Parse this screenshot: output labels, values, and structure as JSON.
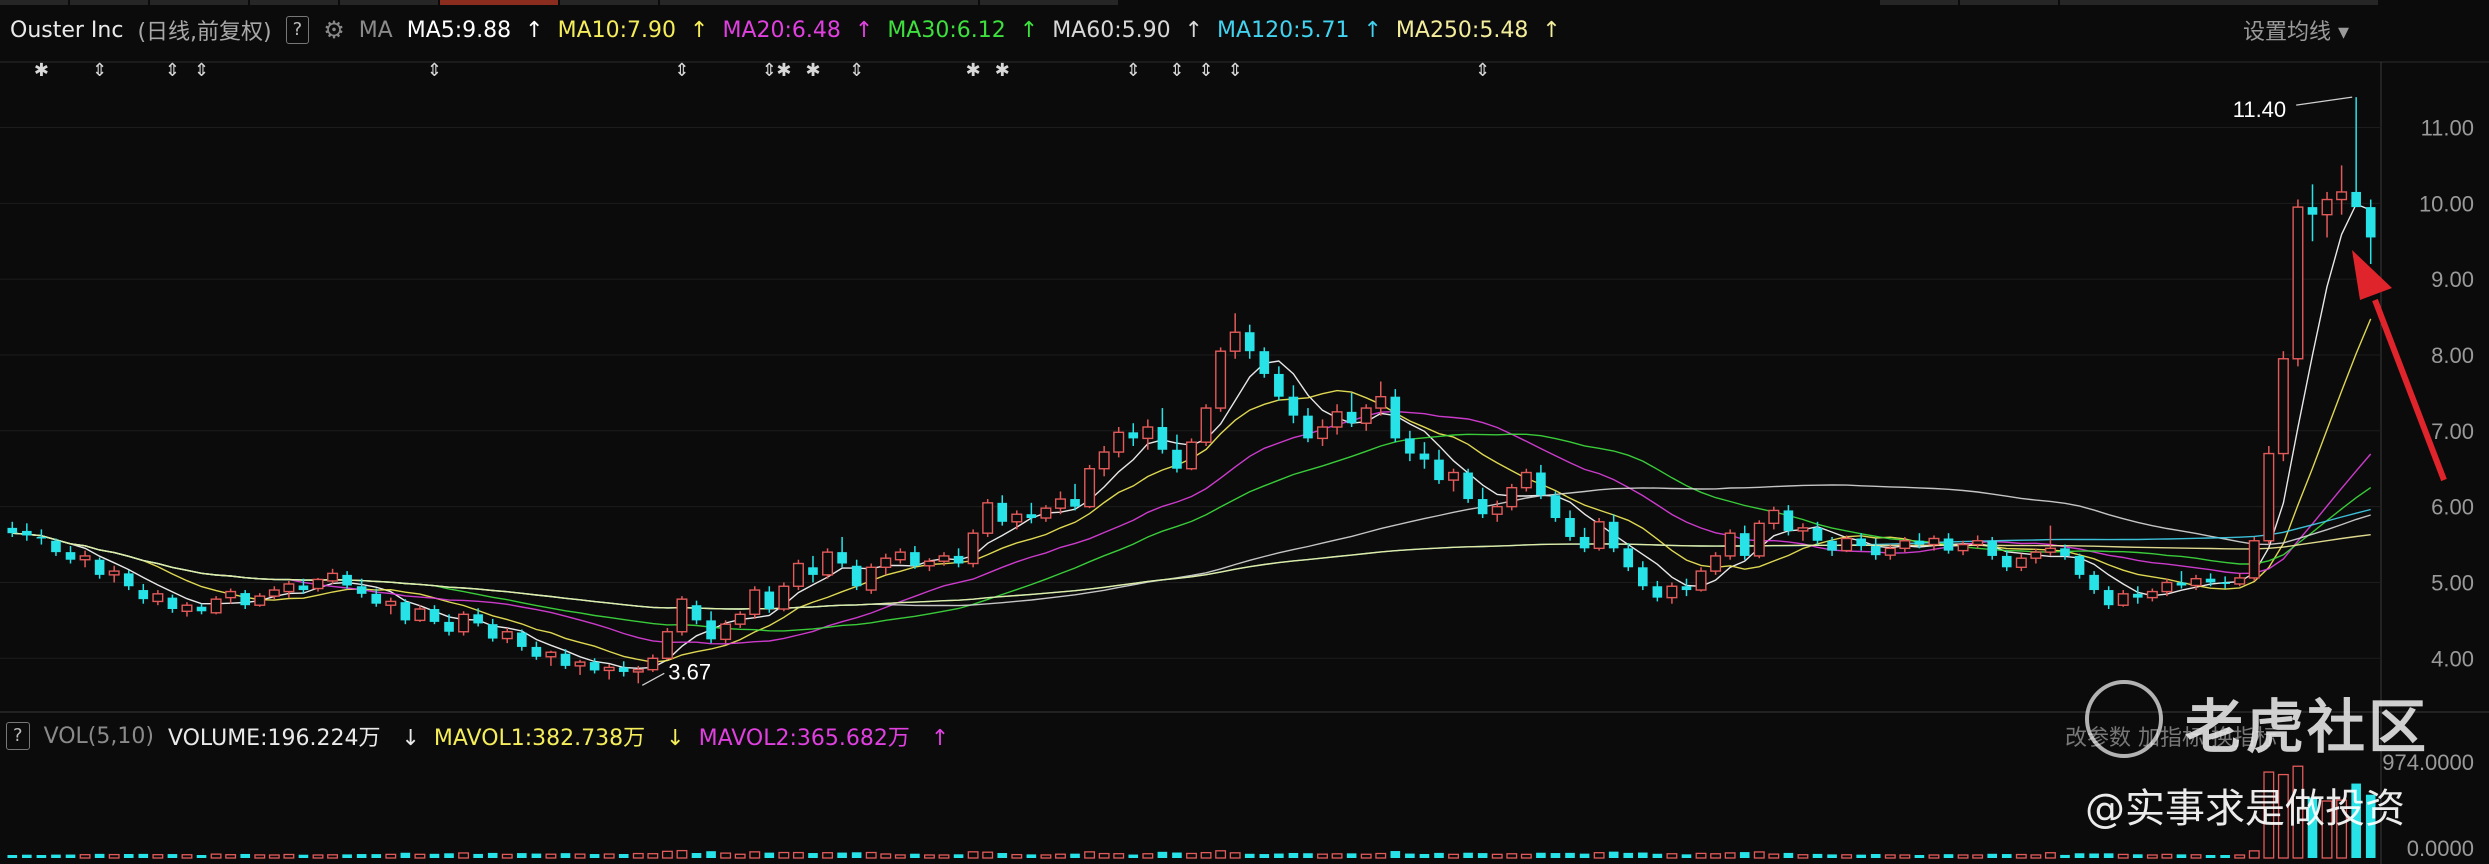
{
  "header": {
    "title": "Ouster Inc",
    "subtitle": "(日线,前复权)",
    "help": "?",
    "ma_label": "MA",
    "settings_label": "设置均线",
    "mas": [
      {
        "label": "MA5:9.88",
        "color": "#ffffff"
      },
      {
        "label": "MA10:7.90",
        "color": "#f5ed5a"
      },
      {
        "label": "MA20:6.48",
        "color": "#e040e0"
      },
      {
        "label": "MA30:6.12",
        "color": "#3ee03e"
      },
      {
        "label": "MA60:5.90",
        "color": "#d8d8d8"
      },
      {
        "label": "MA120:5.71",
        "color": "#41d3f0"
      },
      {
        "label": "MA250:5.48",
        "color": "#f4ee9c"
      }
    ]
  },
  "volume_header": {
    "help": "?",
    "title": "VOL(5,10)",
    "volume": "VOLUME:196.224万",
    "mavol1": "MAVOL1:382.738万",
    "mavol2": "MAVOL2:365.682万",
    "buttons": "改参数  加指标  换指标"
  },
  "watermark": {
    "brand": "老虎社区",
    "author": "@实事求是做投资"
  },
  "chart_data": {
    "type": "candlestick",
    "title": "Ouster Inc",
    "ylim": [
      3.45,
      11.6
    ],
    "yticks": [
      4.0,
      5.0,
      6.0,
      7.0,
      8.0,
      9.0,
      10.0,
      11.0
    ],
    "ytick_labels": [
      "4.00",
      "5.00",
      "6.00",
      "7.00",
      "8.00",
      "9.00",
      "10.00",
      "11.00"
    ],
    "annotations": [
      {
        "text": "11.40",
        "value": 11.4
      },
      {
        "text": "3.67",
        "value": 3.67
      }
    ],
    "volume_axis_labels": [
      "974.0000",
      "0.0000"
    ],
    "ohlc": [
      [
        5.72,
        5.8,
        5.6,
        5.65
      ],
      [
        5.68,
        5.78,
        5.55,
        5.62
      ],
      [
        5.6,
        5.7,
        5.5,
        5.58
      ],
      [
        5.55,
        5.58,
        5.35,
        5.4
      ],
      [
        5.4,
        5.48,
        5.25,
        5.3
      ],
      [
        5.3,
        5.42,
        5.2,
        5.35
      ],
      [
        5.3,
        5.33,
        5.05,
        5.1
      ],
      [
        5.1,
        5.22,
        5.0,
        5.15
      ],
      [
        5.12,
        5.16,
        4.9,
        4.95
      ],
      [
        4.9,
        4.98,
        4.72,
        4.78
      ],
      [
        4.75,
        4.9,
        4.7,
        4.85
      ],
      [
        4.8,
        4.84,
        4.6,
        4.65
      ],
      [
        4.62,
        4.74,
        4.55,
        4.7
      ],
      [
        4.68,
        4.72,
        4.58,
        4.62
      ],
      [
        4.6,
        4.82,
        4.58,
        4.78
      ],
      [
        4.8,
        4.92,
        4.72,
        4.88
      ],
      [
        4.86,
        4.9,
        4.65,
        4.7
      ],
      [
        4.7,
        4.86,
        4.68,
        4.82
      ],
      [
        4.82,
        4.95,
        4.78,
        4.9
      ],
      [
        4.88,
        5.02,
        4.8,
        4.98
      ],
      [
        4.96,
        5.05,
        4.85,
        4.9
      ],
      [
        4.92,
        5.06,
        4.88,
        5.04
      ],
      [
        5.02,
        5.18,
        4.98,
        5.12
      ],
      [
        5.1,
        5.15,
        4.92,
        4.96
      ],
      [
        4.95,
        5.05,
        4.8,
        4.85
      ],
      [
        4.85,
        4.92,
        4.68,
        4.72
      ],
      [
        4.7,
        4.8,
        4.58,
        4.75
      ],
      [
        4.74,
        4.78,
        4.45,
        4.5
      ],
      [
        4.5,
        4.7,
        4.48,
        4.65
      ],
      [
        4.65,
        4.7,
        4.45,
        4.48
      ],
      [
        4.48,
        4.58,
        4.3,
        4.35
      ],
      [
        4.35,
        4.62,
        4.3,
        4.58
      ],
      [
        4.58,
        4.66,
        4.42,
        4.46
      ],
      [
        4.45,
        4.52,
        4.22,
        4.26
      ],
      [
        4.26,
        4.4,
        4.2,
        4.35
      ],
      [
        4.34,
        4.38,
        4.1,
        4.15
      ],
      [
        4.15,
        4.22,
        3.98,
        4.02
      ],
      [
        4.02,
        4.1,
        3.9,
        4.08
      ],
      [
        4.06,
        4.12,
        3.86,
        3.9
      ],
      [
        3.9,
        3.98,
        3.78,
        3.95
      ],
      [
        3.95,
        4.0,
        3.8,
        3.84
      ],
      [
        3.84,
        3.92,
        3.72,
        3.88
      ],
      [
        3.88,
        3.96,
        3.76,
        3.82
      ],
      [
        3.82,
        3.9,
        3.67,
        3.85
      ],
      [
        3.85,
        4.05,
        3.82,
        4.0
      ],
      [
        4.0,
        4.4,
        3.98,
        4.35
      ],
      [
        4.35,
        4.82,
        4.3,
        4.78
      ],
      [
        4.7,
        4.76,
        4.45,
        4.5
      ],
      [
        4.5,
        4.62,
        4.2,
        4.25
      ],
      [
        4.25,
        4.5,
        4.2,
        4.45
      ],
      [
        4.45,
        4.62,
        4.4,
        4.58
      ],
      [
        4.58,
        4.95,
        4.52,
        4.9
      ],
      [
        4.88,
        4.95,
        4.6,
        4.65
      ],
      [
        4.65,
        5.0,
        4.62,
        4.95
      ],
      [
        4.95,
        5.3,
        4.9,
        5.25
      ],
      [
        5.2,
        5.35,
        5.0,
        5.1
      ],
      [
        5.1,
        5.45,
        5.05,
        5.4
      ],
      [
        5.4,
        5.6,
        5.2,
        5.25
      ],
      [
        5.22,
        5.3,
        4.9,
        4.95
      ],
      [
        4.9,
        5.25,
        4.85,
        5.2
      ],
      [
        5.2,
        5.38,
        5.1,
        5.32
      ],
      [
        5.3,
        5.45,
        5.25,
        5.4
      ],
      [
        5.4,
        5.48,
        5.18,
        5.22
      ],
      [
        5.22,
        5.32,
        5.15,
        5.28
      ],
      [
        5.28,
        5.4,
        5.22,
        5.35
      ],
      [
        5.35,
        5.45,
        5.2,
        5.25
      ],
      [
        5.25,
        5.7,
        5.2,
        5.65
      ],
      [
        5.65,
        6.1,
        5.6,
        6.05
      ],
      [
        6.05,
        6.15,
        5.75,
        5.8
      ],
      [
        5.8,
        5.95,
        5.7,
        5.9
      ],
      [
        5.9,
        6.05,
        5.78,
        5.85
      ],
      [
        5.85,
        6.02,
        5.8,
        5.98
      ],
      [
        5.98,
        6.2,
        5.9,
        6.1
      ],
      [
        6.1,
        6.3,
        5.95,
        6.0
      ],
      [
        6.0,
        6.55,
        5.98,
        6.5
      ],
      [
        6.5,
        6.8,
        6.4,
        6.72
      ],
      [
        6.72,
        7.05,
        6.65,
        6.98
      ],
      [
        6.98,
        7.1,
        6.8,
        6.9
      ],
      [
        6.9,
        7.15,
        6.75,
        7.05
      ],
      [
        7.05,
        7.3,
        6.7,
        6.75
      ],
      [
        6.75,
        6.95,
        6.45,
        6.5
      ],
      [
        6.5,
        6.9,
        6.48,
        6.85
      ],
      [
        6.85,
        7.35,
        6.8,
        7.3
      ],
      [
        7.3,
        8.1,
        7.25,
        8.05
      ],
      [
        8.05,
        8.55,
        7.95,
        8.3
      ],
      [
        8.3,
        8.4,
        7.95,
        8.05
      ],
      [
        8.05,
        8.1,
        7.7,
        7.75
      ],
      [
        7.75,
        7.85,
        7.4,
        7.45
      ],
      [
        7.45,
        7.6,
        7.1,
        7.2
      ],
      [
        7.2,
        7.3,
        6.85,
        6.9
      ],
      [
        6.9,
        7.15,
        6.8,
        7.05
      ],
      [
        7.05,
        7.35,
        6.95,
        7.25
      ],
      [
        7.25,
        7.5,
        7.05,
        7.1
      ],
      [
        7.1,
        7.35,
        7.0,
        7.3
      ],
      [
        7.3,
        7.65,
        7.2,
        7.45
      ],
      [
        7.45,
        7.55,
        6.85,
        6.9
      ],
      [
        6.9,
        7.0,
        6.6,
        6.7
      ],
      [
        6.7,
        6.85,
        6.5,
        6.62
      ],
      [
        6.62,
        6.75,
        6.3,
        6.35
      ],
      [
        6.35,
        6.5,
        6.2,
        6.45
      ],
      [
        6.45,
        6.5,
        6.05,
        6.1
      ],
      [
        6.1,
        6.25,
        5.85,
        5.9
      ],
      [
        5.9,
        6.08,
        5.8,
        6.0
      ],
      [
        6.0,
        6.3,
        5.95,
        6.25
      ],
      [
        6.25,
        6.5,
        6.2,
        6.45
      ],
      [
        6.45,
        6.55,
        6.1,
        6.15
      ],
      [
        6.15,
        6.2,
        5.8,
        5.85
      ],
      [
        5.85,
        5.95,
        5.55,
        5.6
      ],
      [
        5.6,
        5.72,
        5.4,
        5.45
      ],
      [
        5.45,
        5.85,
        5.42,
        5.8
      ],
      [
        5.8,
        5.9,
        5.4,
        5.45
      ],
      [
        5.45,
        5.52,
        5.15,
        5.2
      ],
      [
        5.2,
        5.28,
        4.9,
        4.95
      ],
      [
        4.95,
        5.02,
        4.75,
        4.8
      ],
      [
        4.8,
        5.0,
        4.72,
        4.95
      ],
      [
        4.95,
        5.05,
        4.82,
        4.9
      ],
      [
        4.9,
        5.2,
        4.88,
        5.15
      ],
      [
        5.15,
        5.4,
        5.1,
        5.35
      ],
      [
        5.35,
        5.7,
        5.3,
        5.65
      ],
      [
        5.65,
        5.75,
        5.3,
        5.35
      ],
      [
        5.35,
        5.82,
        5.32,
        5.78
      ],
      [
        5.78,
        6.0,
        5.7,
        5.95
      ],
      [
        5.95,
        6.02,
        5.62,
        5.68
      ],
      [
        5.68,
        5.78,
        5.55,
        5.72
      ],
      [
        5.72,
        5.8,
        5.5,
        5.55
      ],
      [
        5.55,
        5.6,
        5.35,
        5.42
      ],
      [
        5.42,
        5.62,
        5.4,
        5.58
      ],
      [
        5.58,
        5.65,
        5.42,
        5.48
      ],
      [
        5.48,
        5.58,
        5.3,
        5.36
      ],
      [
        5.36,
        5.5,
        5.3,
        5.45
      ],
      [
        5.45,
        5.6,
        5.4,
        5.55
      ],
      [
        5.55,
        5.65,
        5.45,
        5.5
      ],
      [
        5.5,
        5.62,
        5.42,
        5.58
      ],
      [
        5.58,
        5.65,
        5.38,
        5.42
      ],
      [
        5.42,
        5.55,
        5.36,
        5.5
      ],
      [
        5.5,
        5.62,
        5.45,
        5.55
      ],
      [
        5.55,
        5.6,
        5.3,
        5.35
      ],
      [
        5.35,
        5.42,
        5.15,
        5.2
      ],
      [
        5.2,
        5.38,
        5.15,
        5.32
      ],
      [
        5.32,
        5.45,
        5.25,
        5.4
      ],
      [
        5.4,
        5.75,
        5.35,
        5.45
      ],
      [
        5.45,
        5.5,
        5.3,
        5.35
      ],
      [
        5.35,
        5.38,
        5.05,
        5.1
      ],
      [
        5.1,
        5.15,
        4.85,
        4.9
      ],
      [
        4.9,
        4.95,
        4.65,
        4.7
      ],
      [
        4.7,
        4.9,
        4.68,
        4.85
      ],
      [
        4.85,
        4.95,
        4.72,
        4.8
      ],
      [
        4.8,
        4.92,
        4.75,
        4.88
      ],
      [
        4.88,
        5.05,
        4.82,
        5.0
      ],
      [
        5.0,
        5.15,
        4.92,
        4.96
      ],
      [
        4.96,
        5.1,
        4.9,
        5.05
      ],
      [
        5.05,
        5.12,
        4.95,
        5.0
      ],
      [
        5.0,
        5.08,
        4.92,
        4.98
      ],
      [
        4.98,
        5.12,
        4.95,
        5.06
      ],
      [
        5.06,
        5.6,
        5.02,
        5.55
      ],
      [
        5.55,
        6.8,
        5.5,
        6.7
      ],
      [
        6.7,
        8.05,
        6.6,
        7.95
      ],
      [
        7.95,
        10.05,
        7.85,
        9.95
      ],
      [
        9.95,
        10.25,
        9.5,
        9.85
      ],
      [
        9.85,
        10.15,
        9.55,
        10.05
      ],
      [
        10.05,
        10.5,
        9.85,
        10.15
      ],
      [
        10.15,
        11.4,
        10.0,
        9.95
      ],
      [
        9.95,
        10.05,
        9.2,
        9.55
      ]
    ],
    "volume_max": 974.0
  }
}
